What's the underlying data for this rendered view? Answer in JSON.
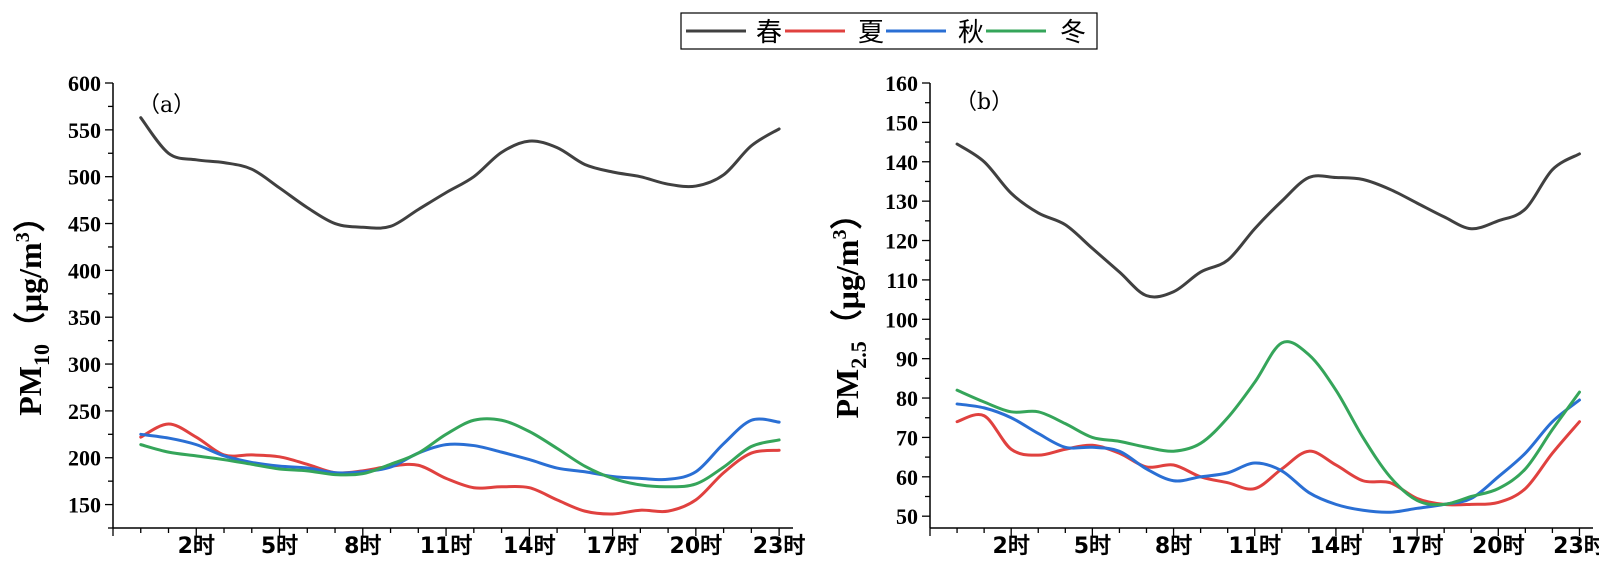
{
  "legend": [
    {
      "label": "春",
      "color": "#404040"
    },
    {
      "label": "夏",
      "color": "#e0413f"
    },
    {
      "label": "秋",
      "color": "#2a6fd4"
    },
    {
      "label": "冬",
      "color": "#35a55a"
    }
  ],
  "chart_data": [
    {
      "type": "line",
      "panel_label": "（a）",
      "ylabel": {
        "main": "PM",
        "sub": "10",
        "unit": "（μg/m",
        "sup": "3",
        "close": "）"
      },
      "ylim": [
        125,
        600
      ],
      "yticks": [
        150,
        200,
        250,
        300,
        350,
        400,
        450,
        500,
        550,
        600
      ],
      "xlim": [
        -1,
        23.5
      ],
      "xticks": [
        2,
        5,
        8,
        11,
        14,
        17,
        20,
        23
      ],
      "xtick_labels": [
        "2时",
        "5时",
        "8时",
        "11时",
        "14时",
        "17时",
        "20时",
        "23时"
      ],
      "x": [
        0,
        1,
        2,
        3,
        4,
        5,
        6,
        7,
        8,
        9,
        10,
        11,
        12,
        13,
        14,
        15,
        16,
        17,
        18,
        19,
        20,
        21,
        22,
        23
      ],
      "series": [
        {
          "name": "春",
          "color": "#404040",
          "values": [
            563,
            525,
            518,
            515,
            508,
            488,
            467,
            450,
            446,
            447,
            465,
            483,
            500,
            526,
            538,
            531,
            513,
            505,
            500,
            492,
            490,
            502,
            533,
            551
          ]
        },
        {
          "name": "夏",
          "color": "#e0413f",
          "values": [
            222,
            236,
            222,
            203,
            203,
            201,
            193,
            184,
            186,
            191,
            192,
            178,
            168,
            169,
            168,
            155,
            143,
            140,
            144,
            143,
            155,
            184,
            205,
            208
          ]
        },
        {
          "name": "秋",
          "color": "#2a6fd4",
          "values": [
            225,
            221,
            214,
            202,
            195,
            191,
            189,
            184,
            185,
            190,
            205,
            214,
            213,
            206,
            198,
            189,
            185,
            180,
            178,
            177,
            185,
            215,
            240,
            238
          ]
        },
        {
          "name": "冬",
          "color": "#35a55a",
          "values": [
            214,
            206,
            202,
            198,
            193,
            188,
            186,
            182,
            183,
            193,
            205,
            225,
            240,
            240,
            228,
            210,
            191,
            178,
            171,
            169,
            172,
            190,
            212,
            219
          ]
        }
      ]
    },
    {
      "type": "line",
      "panel_label": "（b）",
      "ylabel": {
        "main": "PM",
        "sub": "2.5",
        "unit": "（μg/m",
        "sup": "3",
        "close": "）"
      },
      "ylim": [
        47,
        160
      ],
      "yticks": [
        50,
        60,
        70,
        80,
        90,
        100,
        110,
        120,
        130,
        140,
        150,
        160
      ],
      "xlim": [
        -1,
        23.5
      ],
      "xticks": [
        2,
        5,
        8,
        11,
        14,
        17,
        20,
        23
      ],
      "xtick_labels": [
        "2时",
        "5时",
        "8时",
        "11时",
        "14时",
        "17时",
        "20时",
        "23时"
      ],
      "x": [
        0,
        1,
        2,
        3,
        4,
        5,
        6,
        7,
        8,
        9,
        10,
        11,
        12,
        13,
        14,
        15,
        16,
        17,
        18,
        19,
        20,
        21,
        22,
        23
      ],
      "series": [
        {
          "name": "春",
          "color": "#404040",
          "values": [
            144.5,
            140,
            132,
            127,
            124,
            118,
            112,
            106,
            107,
            112,
            115,
            123,
            130,
            136,
            136,
            135.5,
            133,
            129.5,
            126,
            123,
            125,
            128,
            138,
            142
          ]
        },
        {
          "name": "夏",
          "color": "#e0413f",
          "values": [
            74,
            75.5,
            67,
            65.5,
            67,
            68,
            66,
            62.5,
            63,
            60,
            58.5,
            57,
            62,
            66.5,
            63,
            59,
            58.5,
            54.5,
            53,
            53,
            53.5,
            57,
            66,
            74
          ]
        },
        {
          "name": "秋",
          "color": "#2a6fd4",
          "values": [
            78.5,
            77.5,
            75,
            71,
            67.5,
            67.5,
            66.5,
            62,
            59,
            60,
            61,
            63.5,
            61.5,
            56,
            53,
            51.5,
            51,
            52,
            53,
            54.5,
            60,
            66,
            74,
            79.5
          ]
        },
        {
          "name": "冬",
          "color": "#35a55a",
          "values": [
            82,
            79,
            76.5,
            76.5,
            73.5,
            70,
            69,
            67.5,
            66.5,
            68.5,
            75,
            84,
            94,
            91,
            82,
            70,
            60,
            54,
            53,
            55,
            57,
            62,
            72,
            81.5
          ]
        }
      ]
    }
  ]
}
